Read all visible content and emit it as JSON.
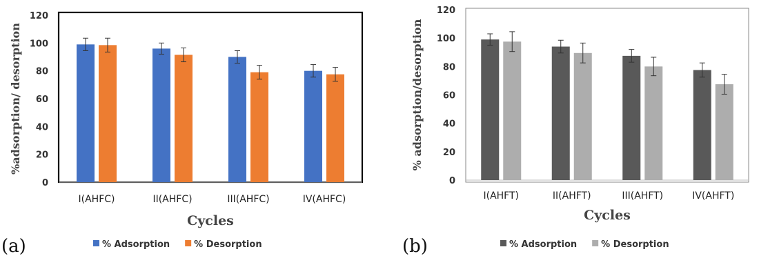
{
  "panels": [
    {
      "label": "(a)",
      "chart_data": {
        "type": "bar",
        "categories": [
          "I(AHFC)",
          "II(AHFC)",
          "III(AHFC)",
          "IV(AHFC)"
        ],
        "series": [
          {
            "name": "% Adsorption",
            "color": "#4472C4",
            "values": [
              99,
              96,
              90,
              80
            ],
            "errors": [
              4.5,
              4,
              4.5,
              4.5
            ]
          },
          {
            "name": "% Desorption",
            "color": "#ED7D31",
            "values": [
              98.5,
              91.5,
              79,
              77.5
            ],
            "errors": [
              5,
              5,
              5,
              5
            ]
          }
        ],
        "title": "",
        "xlabel": "Cycles",
        "ylabel": "%adsorption/ desorption",
        "ylim": [
          0,
          120
        ],
        "yticks": [
          0,
          20,
          40,
          60,
          80,
          100,
          120
        ],
        "grid": false,
        "legend": "bottom"
      }
    },
    {
      "label": "(b)",
      "chart_data": {
        "type": "bar",
        "categories": [
          "I(AHFT)",
          "II(AHFT)",
          "III(AHFT)",
          "IV(AHFT)"
        ],
        "series": [
          {
            "name": "% Adsorption",
            "color": "#595959",
            "values": [
              99,
              94,
              87.5,
              77.5
            ],
            "errors": [
              4,
              4.5,
              4.5,
              5
            ]
          },
          {
            "name": "% Desorption",
            "color": "#ADADAD",
            "values": [
              97.5,
              89.5,
              80,
              67.5
            ],
            "errors": [
              7,
              7,
              6.5,
              7
            ]
          }
        ],
        "title": "",
        "xlabel": "Cycles",
        "ylabel": "% adsorption/desorption",
        "ylim": [
          0,
          120
        ],
        "yticks": [
          0,
          20,
          40,
          60,
          80,
          100,
          120
        ],
        "grid": false,
        "legend": "bottom"
      }
    }
  ]
}
